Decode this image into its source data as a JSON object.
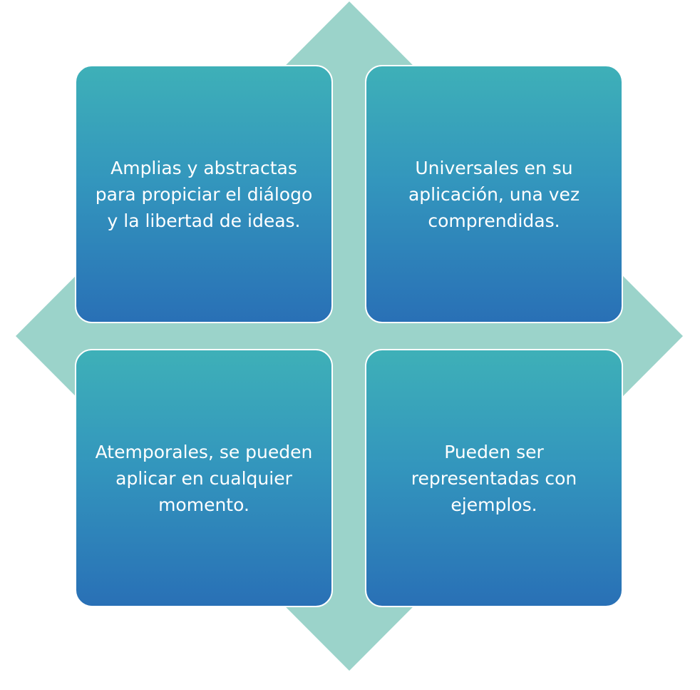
{
  "colors": {
    "diamond": "#9bd3ca",
    "box_top": "#3eb0b8",
    "box_bottom": "#2970b6",
    "box_border": "#ffffff",
    "text": "#ffffff"
  },
  "boxes": [
    {
      "text": "Amplias y abstractas para propiciar el diálogo y la libertad de ideas."
    },
    {
      "text": "Universales en su aplicación, una vez comprendidas."
    },
    {
      "text": "Atemporales, se pueden aplicar en cualquier momento."
    },
    {
      "text": "Pueden ser representadas con ejemplos."
    }
  ]
}
